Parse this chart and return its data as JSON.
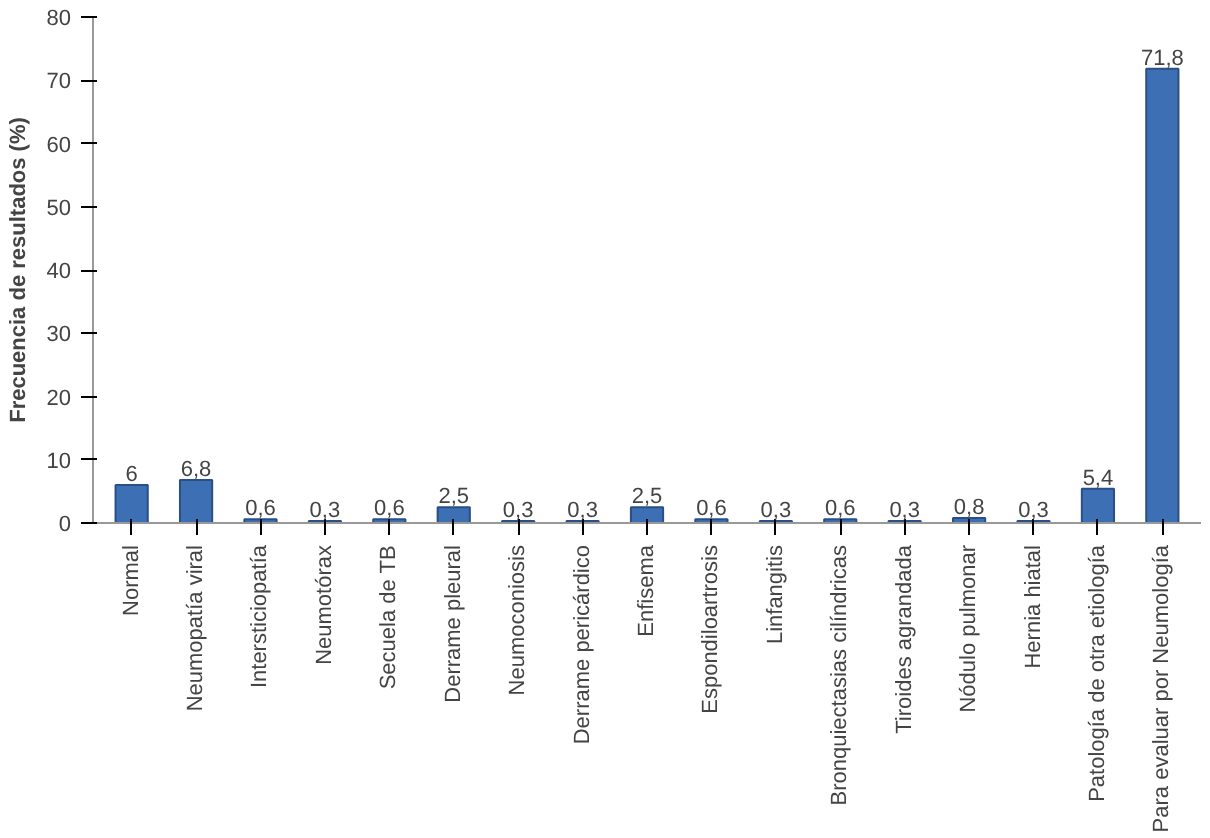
{
  "chart_data": {
    "type": "bar",
    "ylabel": "Frecuencia de resultados (%)",
    "categories": [
      "Normal",
      "Neumopatía viral",
      "Intersticiopatía",
      "Neumotórax",
      "Secuela de TB",
      "Derrame pleural",
      "Neumoconiosis",
      "Derrame pericárdico",
      "Enfisema",
      "Espondiloartrosis",
      "Linfangitis",
      "Bronquiectasias cilíndricas",
      "Tiroides agrandada",
      "Nódulo pulmonar",
      "Hernia hiatal",
      "Patología de otra etiología",
      "Para evaluar por Neumología"
    ],
    "values": [
      6,
      6.8,
      0.6,
      0.3,
      0.6,
      2.5,
      0.3,
      0.3,
      2.5,
      0.6,
      0.3,
      0.6,
      0.3,
      0.8,
      0.3,
      5.4,
      71.8
    ],
    "value_labels": [
      "6",
      "6,8",
      "0,6",
      "0,3",
      "0,6",
      "2,5",
      "0,3",
      "0,3",
      "2,5",
      "0,6",
      "0,3",
      "0,6",
      "0,3",
      "0,8",
      "0,3",
      "5,4",
      "71,8"
    ],
    "color": "#3d6fb5",
    "ylim": [
      0,
      80
    ],
    "yticks": [
      0,
      10,
      20,
      30,
      40,
      50,
      60,
      70,
      80
    ],
    "grid": false
  }
}
